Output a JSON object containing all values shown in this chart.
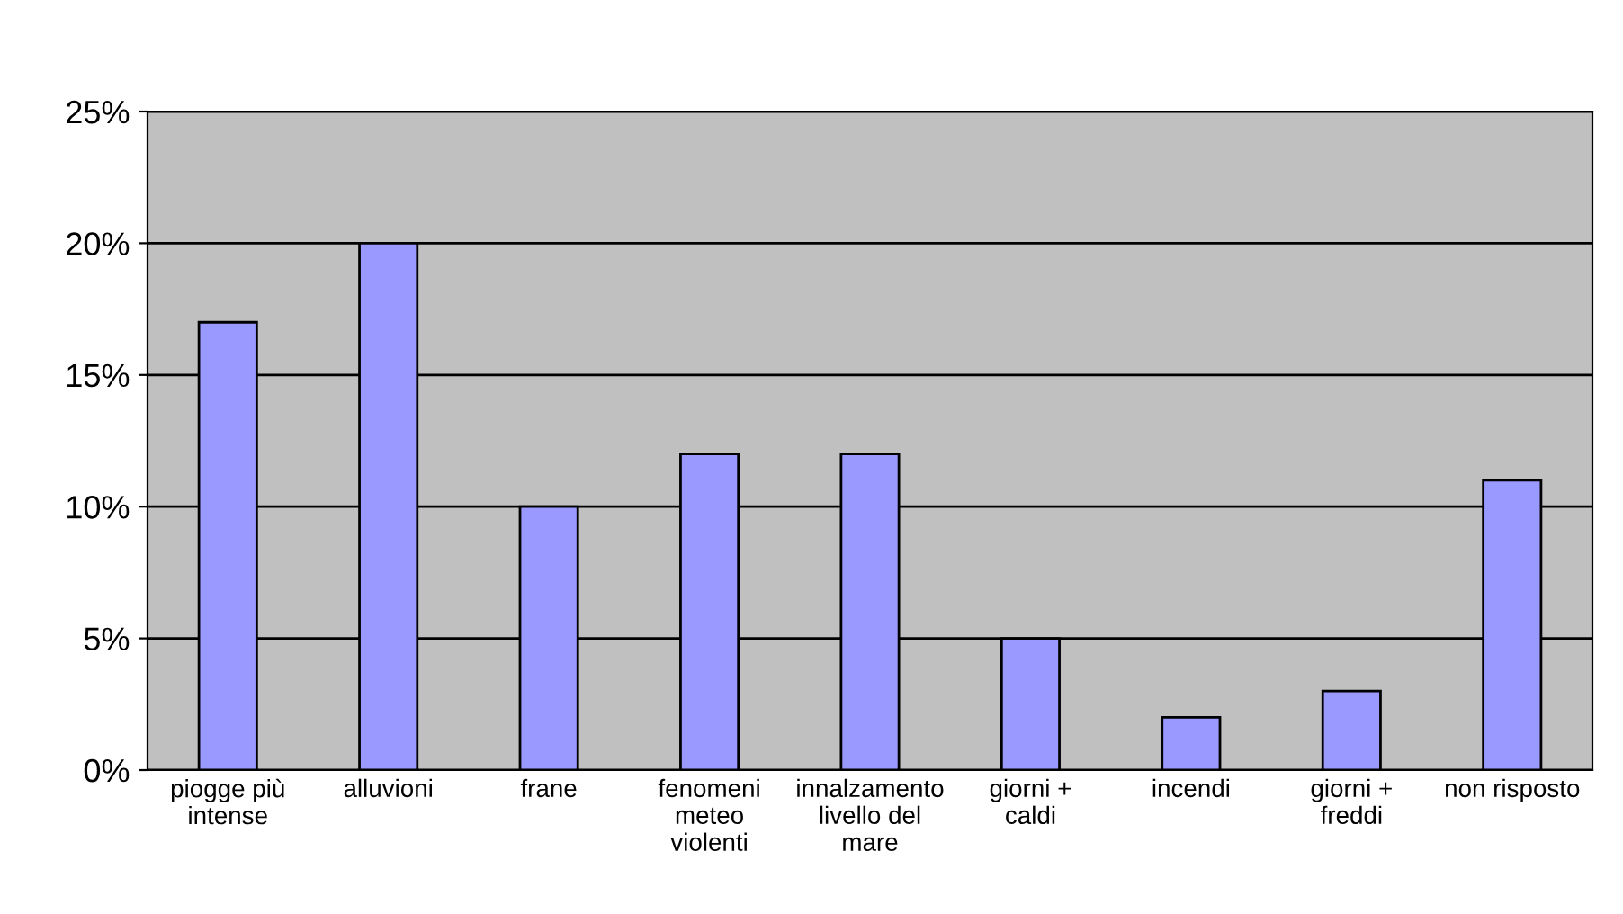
{
  "chart_data": {
    "type": "bar",
    "categories": [
      "piogge più\nintense",
      "alluvioni",
      "frane",
      "fenomeni\nmeteo\nviolenti",
      "innalzamento\nlivello del\nmare",
      "giorni +\ncaldi",
      "incendi",
      "giorni +\nfreddi",
      "non risposto"
    ],
    "values": [
      17,
      20,
      10,
      12,
      12,
      5,
      2,
      3,
      11
    ],
    "color": "#9999ff",
    "ylim": [
      0,
      25
    ],
    "yticks": [
      {
        "value": 0,
        "label": "0%"
      },
      {
        "value": 5,
        "label": "5%"
      },
      {
        "value": 10,
        "label": "10%"
      },
      {
        "value": 15,
        "label": "15%"
      },
      {
        "value": 20,
        "label": "20%"
      },
      {
        "value": 25,
        "label": "25%"
      }
    ],
    "grid": "y"
  }
}
